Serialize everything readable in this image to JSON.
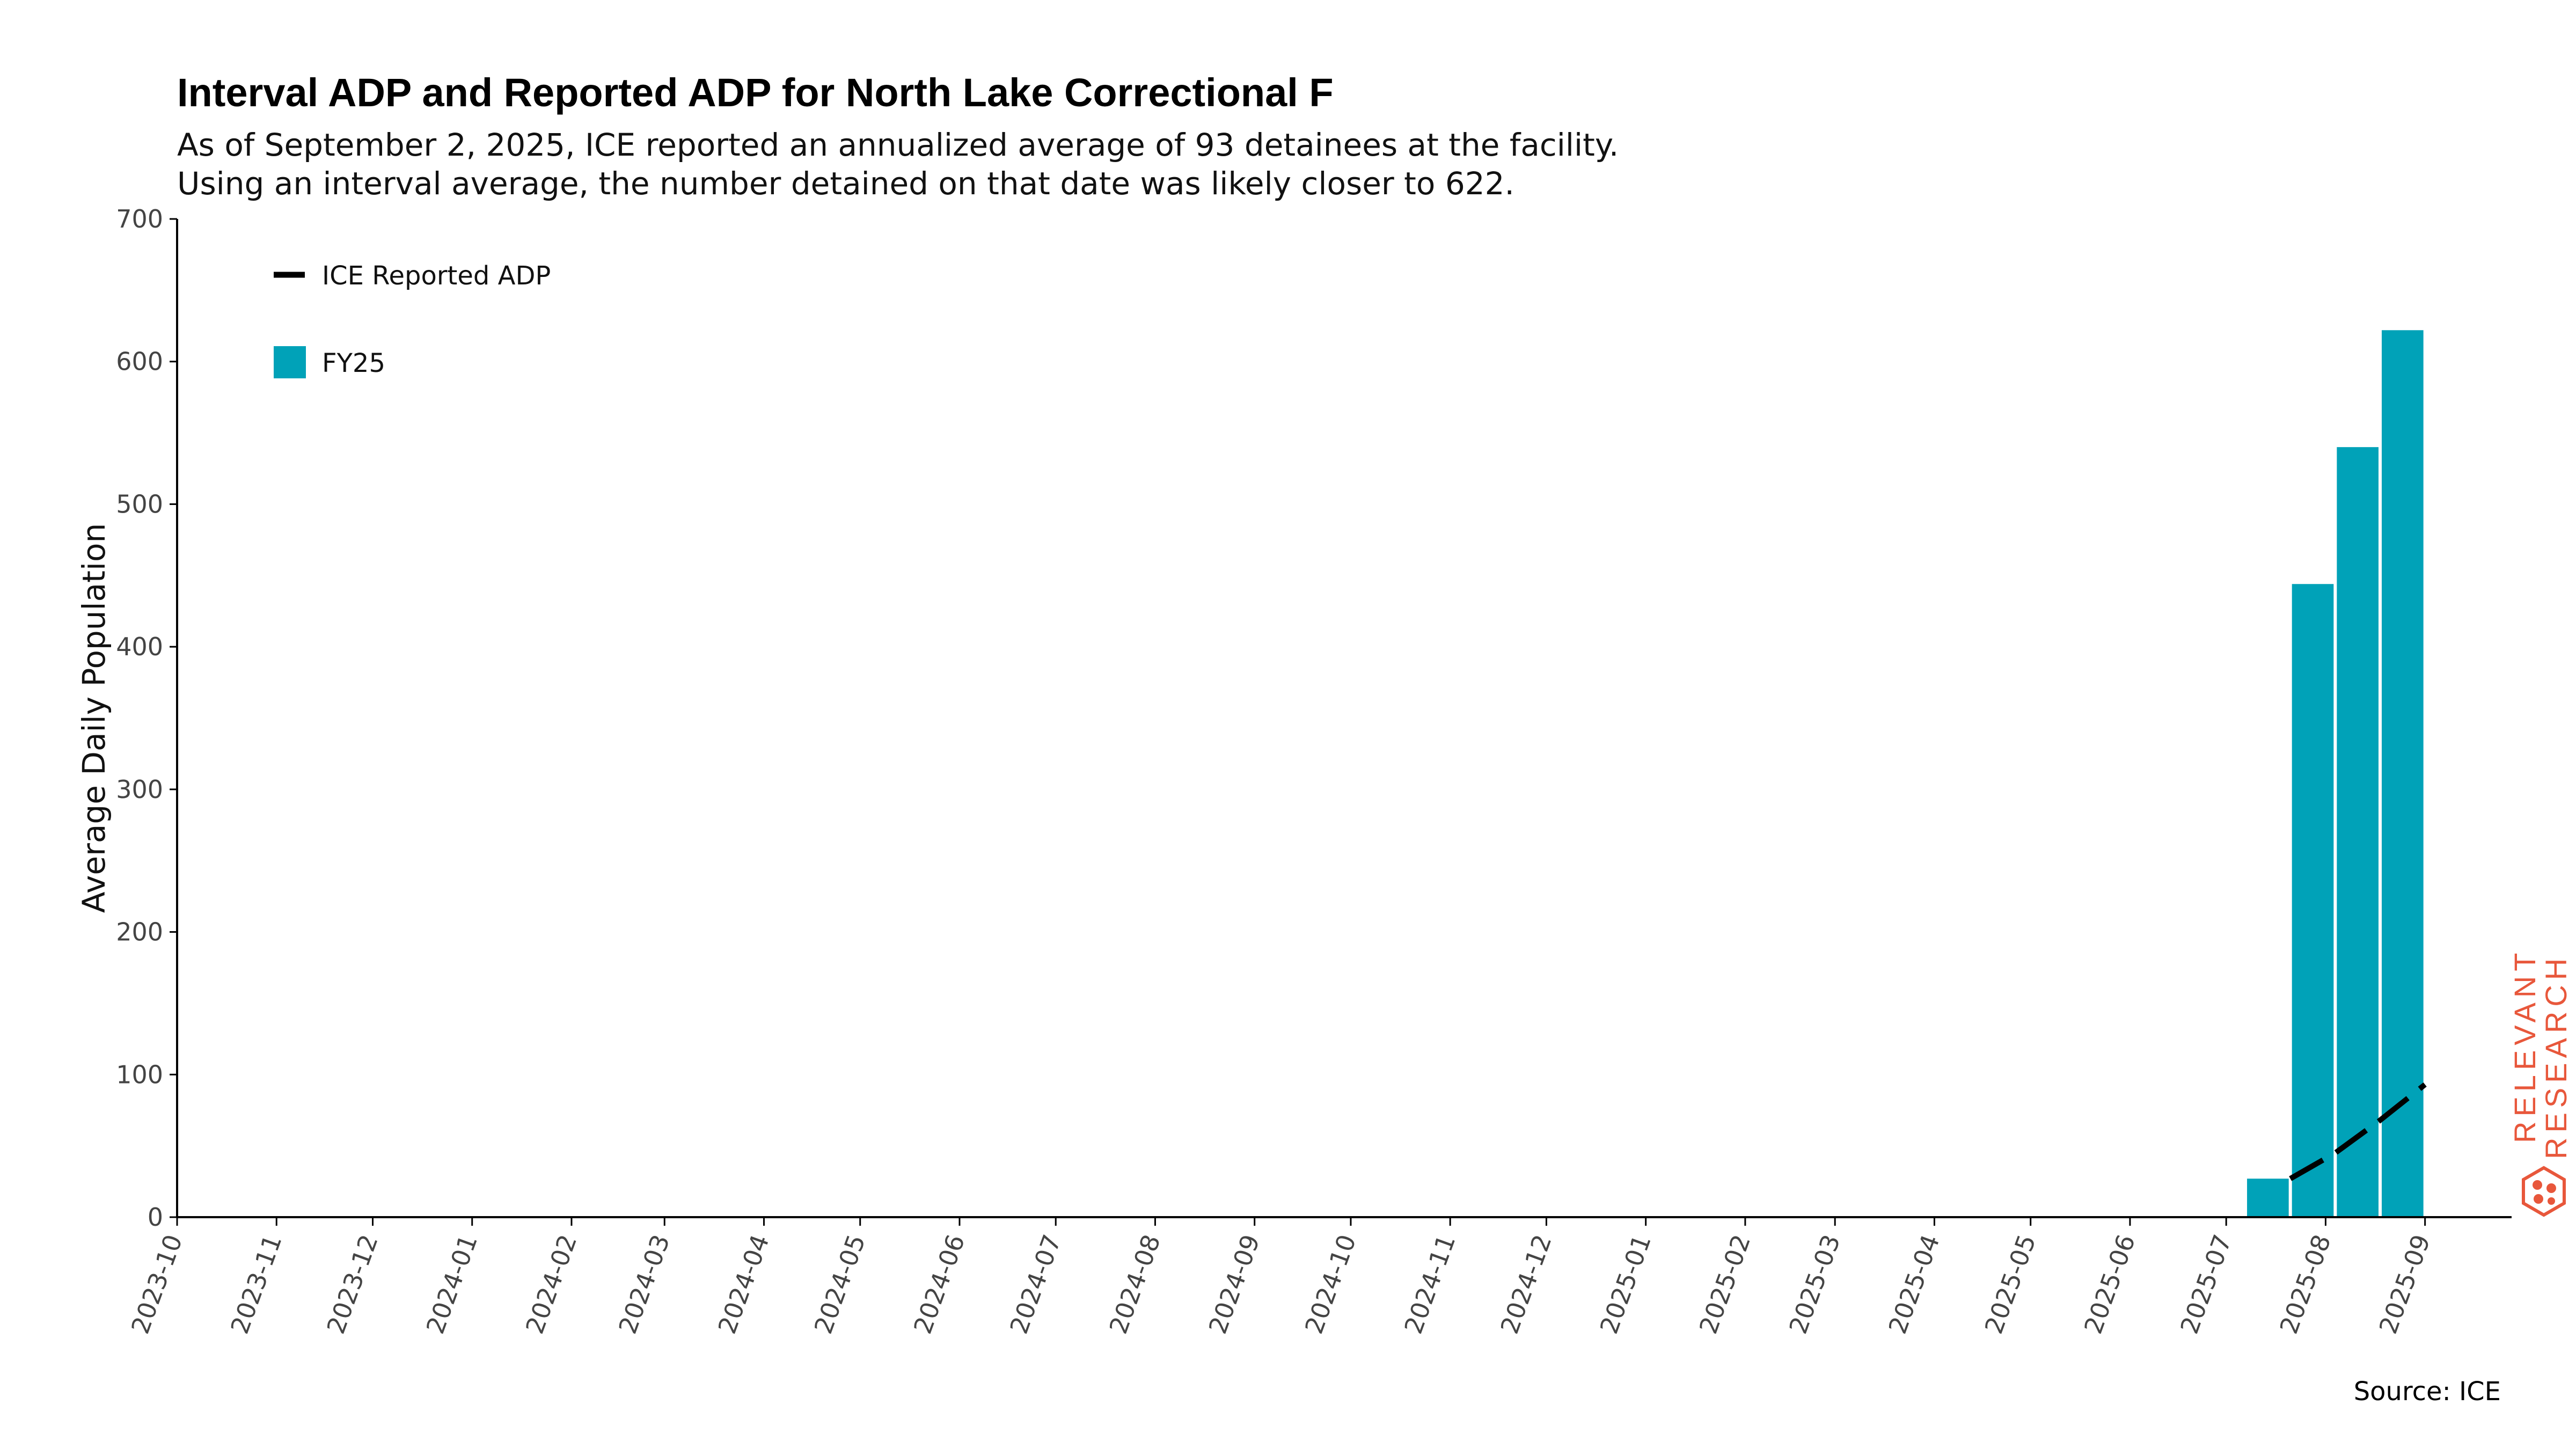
{
  "title": "Interval ADP and Reported ADP for North Lake Correctional F",
  "subtitle_lines": [
    "As of September 2, 2025, ICE reported an annualized average of 93 detainees at the facility.",
    "Using an interval average, the number detained on that date was likely closer to 622."
  ],
  "source": "Source: ICE",
  "logo": {
    "line1": "RELEVANT",
    "line2": "RESEARCH",
    "color": "#e8573b"
  },
  "colors": {
    "bar": "#00a2b8",
    "line": "#000000"
  },
  "chart_data": {
    "type": "bar",
    "title": "Interval ADP and Reported ADP for North Lake Correctional F",
    "xlabel": "",
    "ylabel": "Average Daily Population",
    "x_type": "date",
    "xlim": [
      "2023-10-01",
      "2025-09-28"
    ],
    "ylim": [
      0,
      700
    ],
    "y_ticks": [
      0,
      100,
      200,
      300,
      400,
      500,
      600,
      700
    ],
    "x_ticks": [
      "2023-10",
      "2023-11",
      "2023-12",
      "2024-01",
      "2024-02",
      "2024-03",
      "2024-04",
      "2024-05",
      "2024-06",
      "2024-07",
      "2024-08",
      "2024-09",
      "2024-10",
      "2024-11",
      "2024-12",
      "2025-01",
      "2025-02",
      "2025-03",
      "2025-04",
      "2025-05",
      "2025-06",
      "2025-07",
      "2025-08",
      "2025-09"
    ],
    "grid": false,
    "legend_position": "top-left",
    "series": [
      {
        "name": "FY25",
        "type": "bar",
        "points": [
          {
            "start": "2025-07-07",
            "end": "2025-07-21",
            "value": 27
          },
          {
            "start": "2025-07-21",
            "end": "2025-08-04",
            "value": 444
          },
          {
            "start": "2025-08-04",
            "end": "2025-08-18",
            "value": 540
          },
          {
            "start": "2025-08-18",
            "end": "2025-09-01",
            "value": 622
          }
        ]
      },
      {
        "name": "ICE Reported ADP",
        "type": "line",
        "style": "dashed",
        "points": [
          {
            "date": "2025-07-21",
            "value": 27
          },
          {
            "date": "2025-08-04",
            "value": 45
          },
          {
            "date": "2025-08-18",
            "value": 68
          },
          {
            "date": "2025-09-01",
            "value": 93
          }
        ]
      }
    ]
  }
}
